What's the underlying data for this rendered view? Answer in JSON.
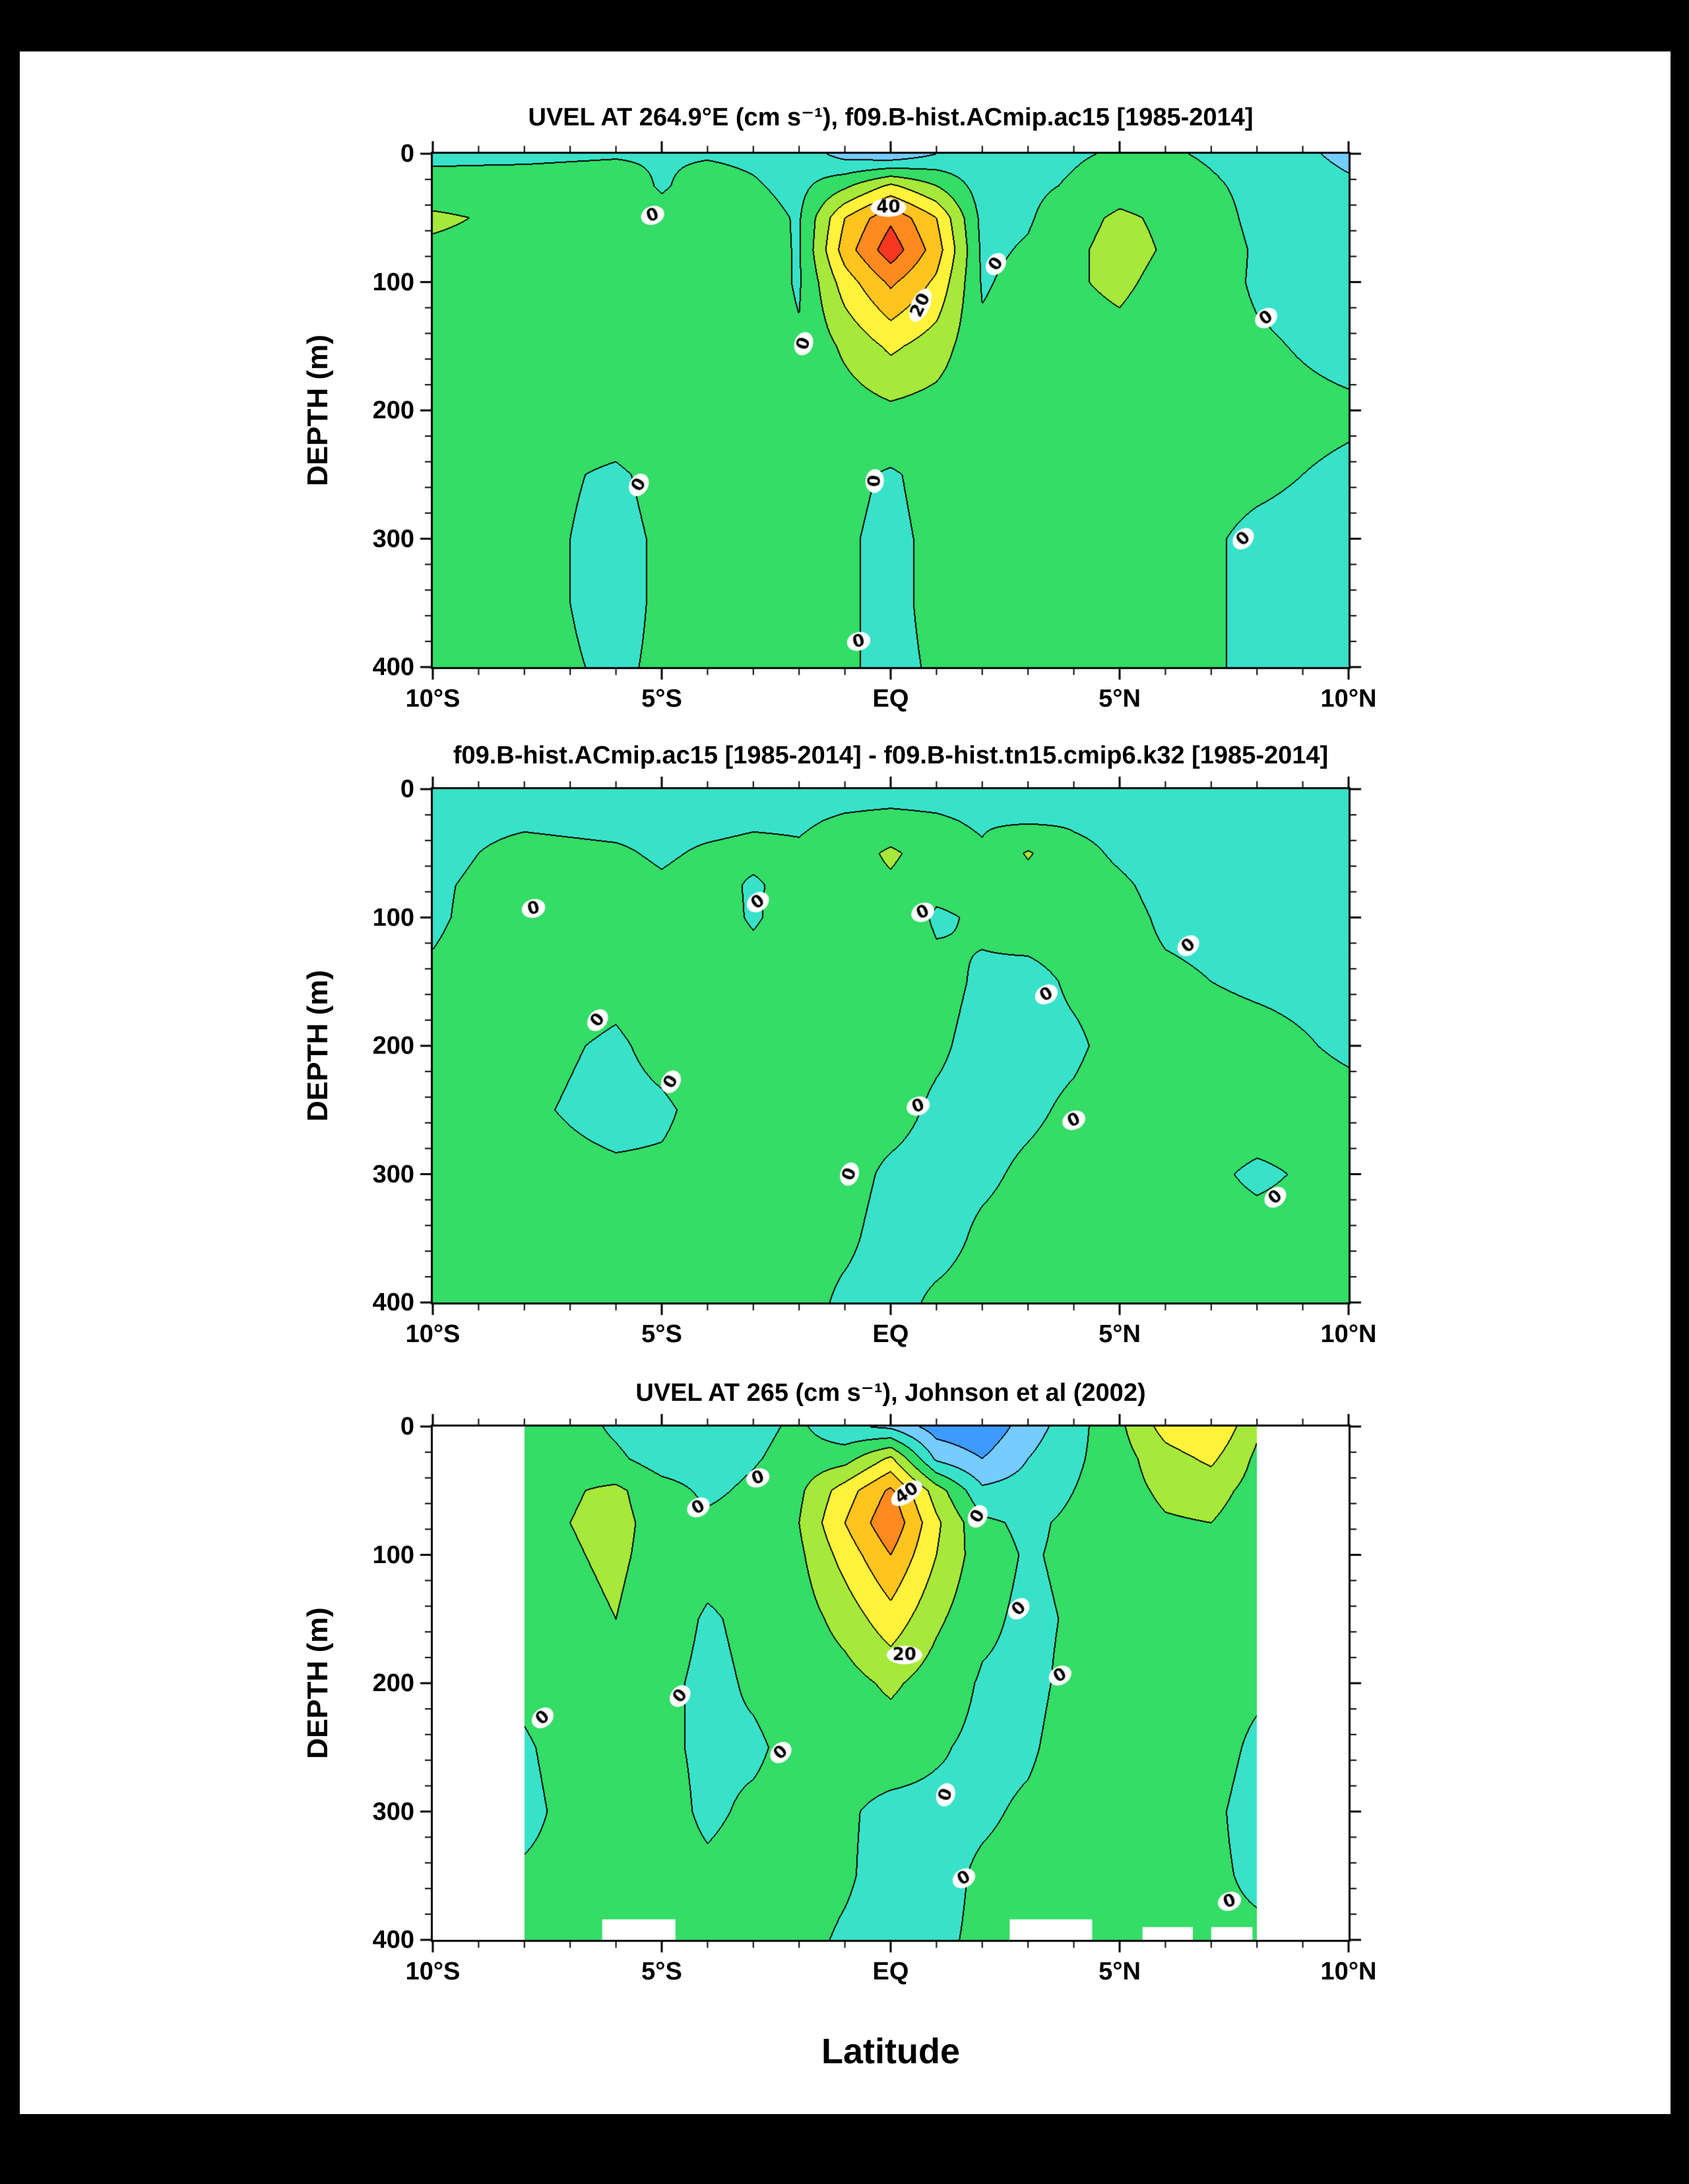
{
  "page": {
    "background": "#000000",
    "paper_background": "#ffffff"
  },
  "figure_xlabel": "Latitude",
  "chart_data": [
    {
      "type": "heatmap",
      "title": "UVEL AT 264.9°E (cm s⁻¹), f09.B-hist.ACmip.ac15 [1985-2014]",
      "ylabel": "DEPTH (m)",
      "xlim": [
        -10,
        10
      ],
      "ylim": [
        0,
        400
      ],
      "xtick_labels": [
        "10°S",
        "5°S",
        "EQ",
        "5°N",
        "10°N"
      ],
      "xtick_pos": [
        -10,
        -5,
        0,
        5,
        10
      ],
      "ytick_labels": [
        "0",
        "100",
        "200",
        "300",
        "400"
      ],
      "ytick_pos": [
        0,
        100,
        200,
        300,
        400
      ],
      "x_minor_step": 1,
      "y_minor_step": 20,
      "contour_interval": 10,
      "line_color": "#000000",
      "level_colors": [
        "#2a7fff",
        "#3d9bff",
        "#74ccff",
        "#38e2c9",
        "#33dd66",
        "#a6e93a",
        "#fff23a",
        "#ffc41e",
        "#ff8a1e",
        "#f5381f"
      ],
      "grid": {
        "lats": [
          -10,
          -8,
          -6,
          -5,
          -4,
          -3,
          -2,
          -1,
          0,
          1,
          2,
          3,
          4,
          5,
          6,
          8,
          10
        ],
        "depths": [
          0,
          25,
          50,
          75,
          100,
          150,
          200,
          250,
          300,
          350,
          400
        ],
        "values": [
          [
            -2,
            -2,
            -1,
            -1,
            -1,
            -2,
            -4,
            -14,
            -18,
            -10,
            -6,
            -3,
            -1,
            1,
            1,
            -3,
            -13
          ],
          [
            3,
            4,
            5,
            -1,
            4,
            1,
            -3,
            8,
            22,
            10,
            -5,
            -2,
            1,
            5,
            4,
            -2,
            -8
          ],
          [
            12,
            7,
            7,
            3,
            6,
            4,
            -1,
            30,
            48,
            30,
            -3,
            -1,
            6,
            12,
            8,
            -2,
            -6
          ],
          [
            8,
            6,
            6,
            6,
            6,
            5,
            -1,
            35,
            56,
            35,
            -2,
            1,
            8,
            14,
            9,
            -1,
            -5
          ],
          [
            5,
            5,
            5,
            6,
            6,
            5,
            -1,
            25,
            42,
            28,
            -1,
            3,
            9,
            12,
            7,
            -1,
            -4
          ],
          [
            3,
            4,
            5,
            7,
            6,
            4,
            1,
            12,
            22,
            15,
            2,
            4,
            6,
            7,
            4,
            1,
            -2
          ],
          [
            2,
            3,
            4,
            6,
            5,
            3,
            2,
            5,
            8,
            6,
            3,
            3,
            4,
            5,
            3,
            2,
            1
          ],
          [
            1,
            2,
            -1,
            2,
            4,
            2,
            1,
            2,
            -1,
            3,
            2,
            2,
            3,
            4,
            2,
            1,
            -1
          ],
          [
            1,
            2,
            -2,
            1,
            3,
            2,
            1,
            1,
            -2,
            2,
            2,
            2,
            3,
            3,
            2,
            -1,
            -2
          ],
          [
            2,
            2,
            -2,
            1,
            2,
            2,
            1,
            1,
            -2,
            2,
            2,
            2,
            2,
            3,
            2,
            -1,
            -3
          ],
          [
            2,
            2,
            -1,
            1,
            2,
            1,
            1,
            1,
            -2,
            1,
            2,
            2,
            2,
            2,
            2,
            -1,
            -3
          ]
        ]
      },
      "contour_labels": [
        {
          "v": "0",
          "lat": -5.2,
          "depth": 48,
          "rot": -20
        },
        {
          "v": "40",
          "lat": -0.05,
          "depth": 42,
          "rot": 0
        },
        {
          "v": "0",
          "lat": 2.3,
          "depth": 86,
          "rot": -55
        },
        {
          "v": "20",
          "lat": 0.65,
          "depth": 118,
          "rot": -65
        },
        {
          "v": "0",
          "lat": -1.9,
          "depth": 148,
          "rot": -70
        },
        {
          "v": "0",
          "lat": -0.35,
          "depth": 255,
          "rot": -85
        },
        {
          "v": "0",
          "lat": -5.5,
          "depth": 258,
          "rot": -60
        },
        {
          "v": "0",
          "lat": 7.7,
          "depth": 300,
          "rot": -45
        },
        {
          "v": "0",
          "lat": 8.2,
          "depth": 128,
          "rot": -35
        },
        {
          "v": "0",
          "lat": -0.7,
          "depth": 380,
          "rot": -15
        }
      ]
    },
    {
      "type": "heatmap",
      "title": "f09.B-hist.ACmip.ac15 [1985-2014] - f09.B-hist.tn15.cmip6.k32 [1985-2014]",
      "ylabel": "DEPTH (m)",
      "xlim": [
        -10,
        10
      ],
      "ylim": [
        0,
        400
      ],
      "xtick_labels": [
        "10°S",
        "5°S",
        "EQ",
        "5°N",
        "10°N"
      ],
      "xtick_pos": [
        -10,
        -5,
        0,
        5,
        10
      ],
      "ytick_labels": [
        "0",
        "100",
        "200",
        "300",
        "400"
      ],
      "ytick_pos": [
        0,
        100,
        200,
        300,
        400
      ],
      "x_minor_step": 1,
      "y_minor_step": 20,
      "contour_interval": 10,
      "line_color": "#000000",
      "level_colors": [
        "#2a7fff",
        "#3d9bff",
        "#74ccff",
        "#38e2c9",
        "#33dd66",
        "#a6e93a",
        "#fff23a",
        "#ffc41e",
        "#ff8a1e",
        "#f5381f"
      ],
      "grid": {
        "lats": [
          -10,
          -8,
          -6,
          -5,
          -4,
          -3,
          -2,
          -1,
          0,
          1,
          2,
          3,
          4,
          5,
          6,
          8,
          10
        ],
        "depths": [
          0,
          25,
          50,
          75,
          100,
          150,
          200,
          250,
          300,
          350,
          400
        ],
        "values": [
          [
            -3,
            -3,
            -3,
            -3,
            -3,
            -3,
            -3,
            -3,
            -3,
            -3,
            -3,
            -3,
            -3,
            -3,
            -3,
            -3,
            -3
          ],
          [
            -2,
            -1,
            -2,
            -2,
            -2,
            -1,
            -1,
            1,
            2,
            1,
            -1,
            -1,
            -1,
            -2,
            -3,
            -3,
            -3
          ],
          [
            -2,
            2,
            1,
            -1,
            1,
            2,
            1,
            4,
            12,
            4,
            1,
            11,
            2,
            -1,
            -3,
            -4,
            -3
          ],
          [
            -1,
            3,
            3,
            1,
            3,
            -1,
            3,
            5,
            8,
            2,
            2,
            6,
            3,
            1,
            -2,
            -3,
            -2
          ],
          [
            -1,
            4,
            4,
            3,
            4,
            -1,
            4,
            5,
            5,
            -1,
            1,
            3,
            3,
            2,
            -1,
            -2,
            -1
          ],
          [
            1,
            4,
            2,
            4,
            5,
            4,
            4,
            4,
            4,
            2,
            -1,
            -2,
            1,
            2,
            1,
            -1,
            -2
          ],
          [
            3,
            2,
            -1,
            2,
            4,
            4,
            3,
            3,
            3,
            1,
            -2,
            -2,
            -1,
            2,
            3,
            2,
            -1
          ],
          [
            2,
            1,
            -2,
            -1,
            2,
            3,
            3,
            2,
            2,
            -1,
            -2,
            -1,
            1,
            3,
            3,
            3,
            2
          ],
          [
            2,
            2,
            1,
            1,
            2,
            3,
            3,
            2,
            -1,
            -2,
            -1,
            1,
            2,
            3,
            3,
            -1,
            2
          ],
          [
            3,
            3,
            2,
            2,
            3,
            3,
            2,
            1,
            -2,
            -2,
            1,
            2,
            3,
            3,
            2,
            2,
            2
          ],
          [
            3,
            3,
            3,
            3,
            3,
            3,
            2,
            -1,
            -2,
            1,
            2,
            3,
            3,
            2,
            2,
            2,
            2
          ]
        ]
      },
      "contour_labels": [
        {
          "v": "0",
          "lat": -7.8,
          "depth": 93,
          "rot": -15
        },
        {
          "v": "0",
          "lat": -2.9,
          "depth": 88,
          "rot": -35
        },
        {
          "v": "0",
          "lat": 0.7,
          "depth": 96,
          "rot": -25
        },
        {
          "v": "0",
          "lat": 6.5,
          "depth": 122,
          "rot": -40
        },
        {
          "v": "0",
          "lat": 3.4,
          "depth": 160,
          "rot": -30
        },
        {
          "v": "0",
          "lat": -6.4,
          "depth": 180,
          "rot": -50
        },
        {
          "v": "0",
          "lat": -4.8,
          "depth": 228,
          "rot": -60
        },
        {
          "v": "0",
          "lat": 0.6,
          "depth": 247,
          "rot": -20
        },
        {
          "v": "0",
          "lat": 4.0,
          "depth": 258,
          "rot": -25
        },
        {
          "v": "0",
          "lat": 8.4,
          "depth": 318,
          "rot": -40
        },
        {
          "v": "0",
          "lat": -0.9,
          "depth": 300,
          "rot": -70
        }
      ]
    },
    {
      "type": "heatmap",
      "title": "UVEL AT 265 (cm s⁻¹), Johnson et al (2002)",
      "ylabel": "DEPTH (m)",
      "xlim": [
        -10,
        10
      ],
      "ylim": [
        0,
        400
      ],
      "xtick_labels": [
        "10°S",
        "5°S",
        "EQ",
        "5°N",
        "10°N"
      ],
      "xtick_pos": [
        -10,
        -5,
        0,
        5,
        10
      ],
      "ytick_labels": [
        "0",
        "100",
        "200",
        "300",
        "400"
      ],
      "ytick_pos": [
        0,
        100,
        200,
        300,
        400
      ],
      "x_minor_step": 1,
      "y_minor_step": 20,
      "contour_interval": 10,
      "line_color": "#000000",
      "level_colors": [
        "#2a7fff",
        "#3d9bff",
        "#74ccff",
        "#38e2c9",
        "#33dd66",
        "#a6e93a",
        "#fff23a",
        "#ffc41e",
        "#ff8a1e",
        "#f5381f"
      ],
      "grid": {
        "lats": [
          -10,
          -8,
          -7,
          -6,
          -5,
          -4,
          -3,
          -2,
          -1,
          0,
          1,
          2,
          3,
          4,
          5,
          6,
          7,
          8,
          10
        ],
        "depths": [
          0,
          25,
          50,
          75,
          100,
          150,
          200,
          250,
          300,
          350,
          400
        ],
        "values": [
          [
            null,
            4,
            5,
            -2,
            -8,
            -7,
            -3,
            2,
            -8,
            -12,
            -25,
            -28,
            -15,
            -4,
            8,
            24,
            30,
            12,
            null
          ],
          [
            null,
            5,
            6,
            2,
            -5,
            -5,
            -1,
            4,
            6,
            22,
            -12,
            -20,
            -10,
            -2,
            6,
            16,
            22,
            8,
            null
          ],
          [
            null,
            6,
            9,
            12,
            4,
            -2,
            2,
            8,
            25,
            42,
            15,
            -8,
            -6,
            0,
            6,
            12,
            14,
            6,
            null
          ],
          [
            null,
            5,
            10,
            13,
            6,
            2,
            4,
            10,
            30,
            48,
            22,
            2,
            -2,
            2,
            5,
            9,
            10,
            4,
            null
          ],
          [
            null,
            4,
            9,
            12,
            6,
            3,
            3,
            8,
            24,
            40,
            20,
            4,
            -1,
            2,
            4,
            7,
            7,
            3,
            null
          ],
          [
            null,
            3,
            7,
            10,
            4,
            -1,
            2,
            5,
            14,
            26,
            12,
            2,
            -2,
            1,
            5,
            6,
            4,
            2,
            null
          ],
          [
            null,
            2,
            5,
            8,
            2,
            -2,
            1,
            3,
            6,
            12,
            5,
            -1,
            -2,
            2,
            6,
            5,
            2,
            1,
            null
          ],
          [
            null,
            -1,
            3,
            6,
            1,
            -1,
            -1,
            2,
            3,
            4,
            1,
            -2,
            -1,
            3,
            5,
            4,
            2,
            -1,
            null
          ],
          [
            null,
            -2,
            2,
            4,
            2,
            -1,
            1,
            2,
            1,
            -2,
            -2,
            -1,
            1,
            3,
            4,
            3,
            1,
            -2,
            null
          ],
          [
            null,
            1,
            2,
            3,
            2,
            1,
            2,
            3,
            1,
            -3,
            -2,
            1,
            2,
            3,
            3,
            2,
            1,
            -1,
            null
          ],
          [
            null,
            2,
            2,
            2,
            1,
            1,
            2,
            2,
            -1,
            -3,
            -1,
            1,
            2,
            2,
            2,
            2,
            1,
            1,
            null
          ]
        ]
      },
      "mask_rects": [
        {
          "lat0": -6.3,
          "lat1": -4.7,
          "depth0": 384
        },
        {
          "lat0": 2.6,
          "lat1": 4.4,
          "depth0": 384
        },
        {
          "lat0": 5.5,
          "lat1": 6.6,
          "depth0": 390
        },
        {
          "lat0": 7.0,
          "lat1": 7.9,
          "depth0": 390
        }
      ],
      "contour_labels": [
        {
          "v": "40",
          "lat": 0.35,
          "depth": 52,
          "rot": -35
        },
        {
          "v": "20",
          "lat": 0.3,
          "depth": 178,
          "rot": 0
        },
        {
          "v": "0",
          "lat": -4.2,
          "depth": 63,
          "rot": -30
        },
        {
          "v": "0",
          "lat": -2.9,
          "depth": 40,
          "rot": -20
        },
        {
          "v": "0",
          "lat": 1.9,
          "depth": 70,
          "rot": -60
        },
        {
          "v": "0",
          "lat": 2.8,
          "depth": 142,
          "rot": -45
        },
        {
          "v": "0",
          "lat": 3.7,
          "depth": 194,
          "rot": -30
        },
        {
          "v": "0",
          "lat": -4.6,
          "depth": 210,
          "rot": -50
        },
        {
          "v": "0",
          "lat": -7.6,
          "depth": 227,
          "rot": -40
        },
        {
          "v": "0",
          "lat": -2.4,
          "depth": 254,
          "rot": -45
        },
        {
          "v": "0",
          "lat": 1.2,
          "depth": 287,
          "rot": -70
        },
        {
          "v": "0",
          "lat": 1.6,
          "depth": 352,
          "rot": -30
        },
        {
          "v": "0",
          "lat": 7.4,
          "depth": 370,
          "rot": -20
        }
      ]
    }
  ]
}
